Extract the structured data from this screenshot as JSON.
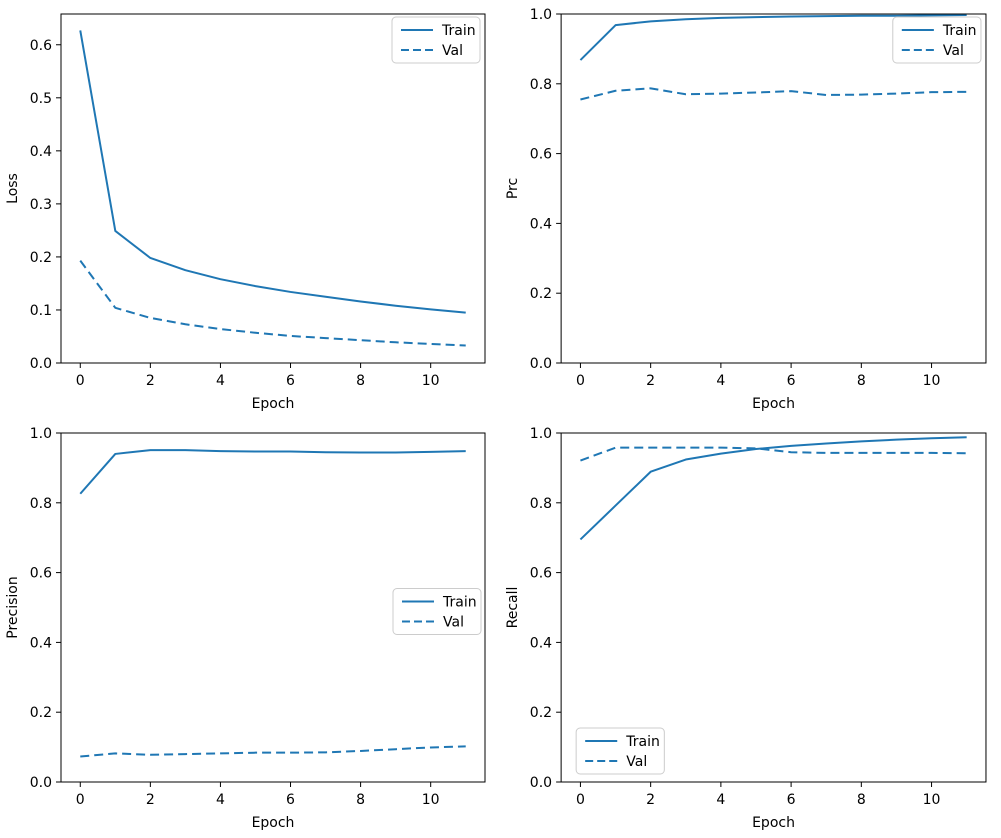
{
  "figure": {
    "background": "#ffffff",
    "line_color": "#1f77b4",
    "spine_color": "#000000",
    "legend_border_color": "#cccccc",
    "legend_background": "#ffffff"
  },
  "chart_data": [
    {
      "type": "line",
      "title": "",
      "xlabel": "Epoch",
      "ylabel": "Loss",
      "x": [
        0,
        1,
        2,
        3,
        4,
        5,
        6,
        7,
        8,
        9,
        10,
        11
      ],
      "xlim": [
        -0.55,
        11.55
      ],
      "ylim": [
        0,
        0.658
      ],
      "xticks": {
        "values": [
          0,
          2,
          4,
          6,
          8,
          10
        ],
        "labels": [
          "0",
          "2",
          "4",
          "6",
          "8",
          "10"
        ]
      },
      "yticks": {
        "values": [
          0.0,
          0.1,
          0.2,
          0.3,
          0.4,
          0.5,
          0.6
        ],
        "labels": [
          "0.0",
          "0.1",
          "0.2",
          "0.3",
          "0.4",
          "0.5",
          "0.6"
        ]
      },
      "grid": false,
      "legend": {
        "loc": "upper right"
      },
      "series": [
        {
          "name": "Train",
          "style": "solid",
          "values": [
            0.627,
            0.249,
            0.198,
            0.175,
            0.158,
            0.145,
            0.134,
            0.125,
            0.116,
            0.108,
            0.101,
            0.095
          ]
        },
        {
          "name": "Val",
          "style": "dashed",
          "values": [
            0.193,
            0.104,
            0.085,
            0.073,
            0.064,
            0.057,
            0.051,
            0.047,
            0.043,
            0.039,
            0.036,
            0.033
          ]
        }
      ]
    },
    {
      "type": "line",
      "title": "",
      "xlabel": "Epoch",
      "ylabel": "Prc",
      "x": [
        0,
        1,
        2,
        3,
        4,
        5,
        6,
        7,
        8,
        9,
        10,
        11
      ],
      "xlim": [
        -0.55,
        11.55
      ],
      "ylim": [
        0,
        1.0
      ],
      "xticks": {
        "values": [
          0,
          2,
          4,
          6,
          8,
          10
        ],
        "labels": [
          "0",
          "2",
          "4",
          "6",
          "8",
          "10"
        ]
      },
      "yticks": {
        "values": [
          0.0,
          0.2,
          0.4,
          0.6,
          0.8,
          1.0
        ],
        "labels": [
          "0.0",
          "0.2",
          "0.4",
          "0.6",
          "0.8",
          "1.0"
        ]
      },
      "grid": false,
      "legend": {
        "loc": "upper right"
      },
      "series": [
        {
          "name": "Train",
          "style": "solid",
          "values": [
            0.868,
            0.968,
            0.979,
            0.985,
            0.989,
            0.991,
            0.993,
            0.994,
            0.995,
            0.995,
            0.996,
            0.997
          ]
        },
        {
          "name": "Val",
          "style": "dashed",
          "values": [
            0.755,
            0.78,
            0.787,
            0.77,
            0.772,
            0.775,
            0.779,
            0.768,
            0.769,
            0.772,
            0.776,
            0.777
          ]
        }
      ]
    },
    {
      "type": "line",
      "title": "",
      "xlabel": "Epoch",
      "ylabel": "Precision",
      "x": [
        0,
        1,
        2,
        3,
        4,
        5,
        6,
        7,
        8,
        9,
        10,
        11
      ],
      "xlim": [
        -0.55,
        11.55
      ],
      "ylim": [
        0,
        1.0
      ],
      "xticks": {
        "values": [
          0,
          2,
          4,
          6,
          8,
          10
        ],
        "labels": [
          "0",
          "2",
          "4",
          "6",
          "8",
          "10"
        ]
      },
      "yticks": {
        "values": [
          0.0,
          0.2,
          0.4,
          0.6,
          0.8,
          1.0
        ],
        "labels": [
          "0.0",
          "0.2",
          "0.4",
          "0.6",
          "0.8",
          "1.0"
        ]
      },
      "grid": false,
      "legend": {
        "loc": "center right"
      },
      "series": [
        {
          "name": "Train",
          "style": "solid",
          "values": [
            0.826,
            0.94,
            0.951,
            0.951,
            0.948,
            0.947,
            0.947,
            0.945,
            0.944,
            0.944,
            0.946,
            0.948
          ]
        },
        {
          "name": "Val",
          "style": "dashed",
          "values": [
            0.073,
            0.082,
            0.078,
            0.08,
            0.082,
            0.084,
            0.084,
            0.085,
            0.089,
            0.094,
            0.099,
            0.102
          ]
        }
      ]
    },
    {
      "type": "line",
      "title": "",
      "xlabel": "Epoch",
      "ylabel": "Recall",
      "x": [
        0,
        1,
        2,
        3,
        4,
        5,
        6,
        7,
        8,
        9,
        10,
        11
      ],
      "xlim": [
        -0.55,
        11.55
      ],
      "ylim": [
        0,
        1.0
      ],
      "xticks": {
        "values": [
          0,
          2,
          4,
          6,
          8,
          10
        ],
        "labels": [
          "0",
          "2",
          "4",
          "6",
          "8",
          "10"
        ]
      },
      "yticks": {
        "values": [
          0.0,
          0.2,
          0.4,
          0.6,
          0.8,
          1.0
        ],
        "labels": [
          "0.0",
          "0.2",
          "0.4",
          "0.6",
          "0.8",
          "1.0"
        ]
      },
      "grid": false,
      "legend": {
        "loc": "lower left"
      },
      "series": [
        {
          "name": "Train",
          "style": "solid",
          "values": [
            0.695,
            0.792,
            0.889,
            0.924,
            0.941,
            0.954,
            0.963,
            0.97,
            0.976,
            0.981,
            0.985,
            0.988
          ]
        },
        {
          "name": "Val",
          "style": "dashed",
          "values": [
            0.921,
            0.958,
            0.958,
            0.958,
            0.958,
            0.956,
            0.945,
            0.943,
            0.943,
            0.943,
            0.943,
            0.942
          ]
        }
      ]
    }
  ]
}
